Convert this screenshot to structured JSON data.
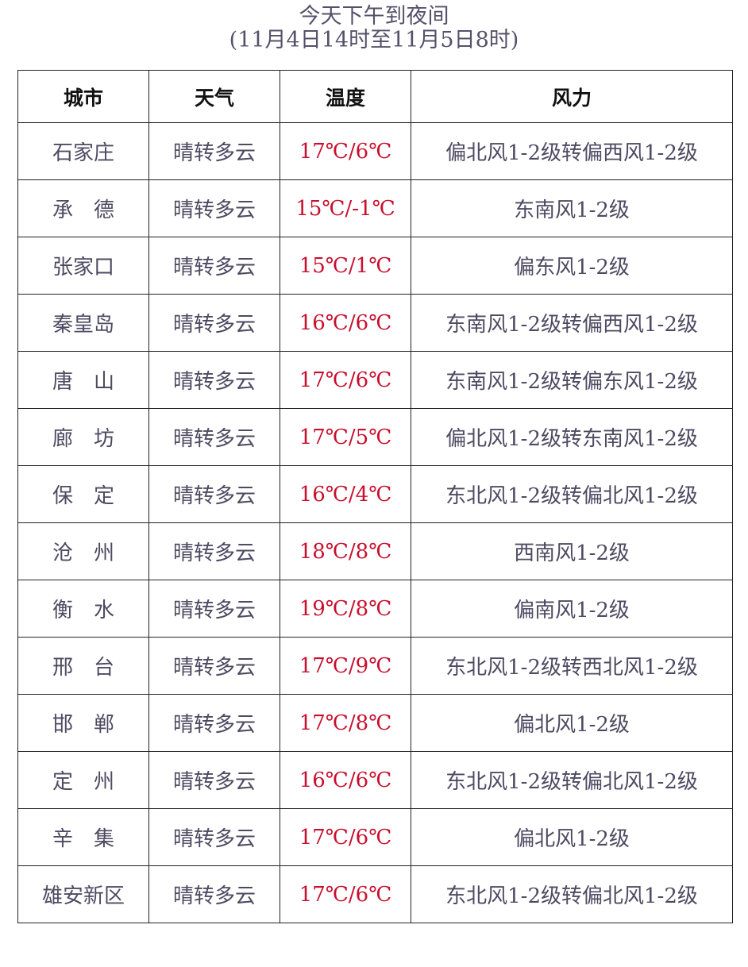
{
  "title": {
    "line1": "今天下午到夜间",
    "line2": "(11月4日14时至11月5日8时)"
  },
  "headers": [
    "城市",
    "天气",
    "温度",
    "风力"
  ],
  "colors": {
    "temperature": "#c8102e",
    "text": "#4e4a62"
  },
  "rows": [
    {
      "city": "石家庄",
      "weather": "晴转多云",
      "temp": "17℃/6℃",
      "wind": "偏北风1-2级转偏西风1-2级"
    },
    {
      "city": "承　德",
      "weather": "晴转多云",
      "temp": "15℃/-1℃",
      "wind": "东南风1-2级"
    },
    {
      "city": "张家口",
      "weather": "晴转多云",
      "temp": "15℃/1℃",
      "wind": "偏东风1-2级"
    },
    {
      "city": "秦皇岛",
      "weather": "晴转多云",
      "temp": "16℃/6℃",
      "wind": "东南风1-2级转偏西风1-2级"
    },
    {
      "city": "唐　山",
      "weather": "晴转多云",
      "temp": "17℃/6℃",
      "wind": "东南风1-2级转偏东风1-2级"
    },
    {
      "city": "廊　坊",
      "weather": "晴转多云",
      "temp": "17℃/5℃",
      "wind": "偏北风1-2级转东南风1-2级"
    },
    {
      "city": "保　定",
      "weather": "晴转多云",
      "temp": "16℃/4℃",
      "wind": "东北风1-2级转偏北风1-2级"
    },
    {
      "city": "沧　州",
      "weather": "晴转多云",
      "temp": "18℃/8℃",
      "wind": "西南风1-2级"
    },
    {
      "city": "衡　水",
      "weather": "晴转多云",
      "temp": "19℃/8℃",
      "wind": "偏南风1-2级"
    },
    {
      "city": "邢　台",
      "weather": "晴转多云",
      "temp": "17℃/9℃",
      "wind": "东北风1-2级转西北风1-2级"
    },
    {
      "city": "邯　郸",
      "weather": "晴转多云",
      "temp": "17℃/8℃",
      "wind": "偏北风1-2级"
    },
    {
      "city": "定　州",
      "weather": "晴转多云",
      "temp": "16℃/6℃",
      "wind": "东北风1-2级转偏北风1-2级"
    },
    {
      "city": "辛　集",
      "weather": "晴转多云",
      "temp": "17℃/6℃",
      "wind": "偏北风1-2级"
    },
    {
      "city": "雄安新区",
      "weather": "晴转多云",
      "temp": "17℃/6℃",
      "wind": "东北风1-2级转偏北风1-2级"
    }
  ]
}
